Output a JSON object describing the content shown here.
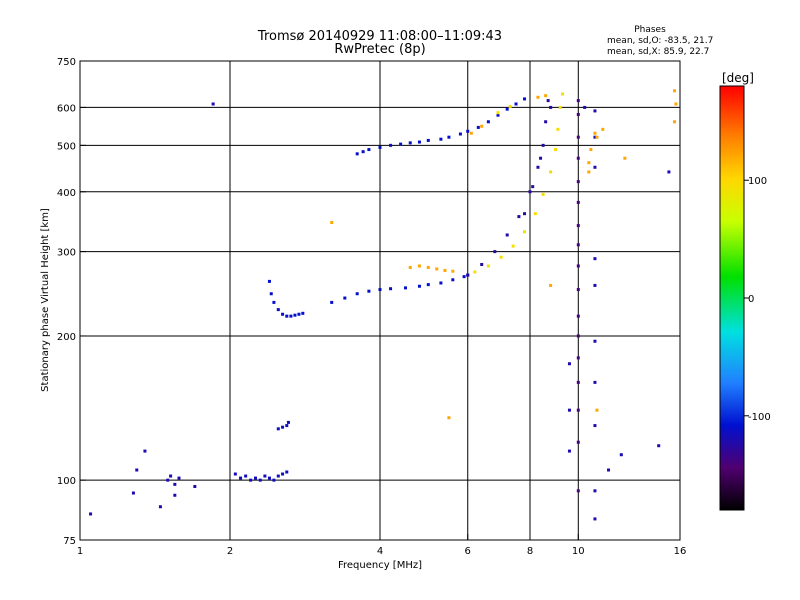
{
  "chart_data": {
    "type": "scatter",
    "title": "Tromsø 20140929 11:08:00–11:09:43",
    "subtitle": "RwPretec (8p)",
    "xlabel": "Frequency [MHz]",
    "ylabel": "Stationary phase Virtual Height [km]",
    "x_scale": "log",
    "y_scale": "log",
    "xlim": [
      1,
      16
    ],
    "ylim": [
      75,
      750
    ],
    "x_ticks": [
      1,
      2,
      4,
      6,
      8,
      10,
      16
    ],
    "x_tick_labels": [
      "1",
      "2",
      "4",
      "6",
      "8",
      "10",
      "16"
    ],
    "y_ticks": [
      75,
      100,
      200,
      300,
      400,
      500,
      600,
      750
    ],
    "y_tick_labels": [
      "75",
      "100",
      "200",
      "300",
      "400",
      "500",
      "600",
      "750"
    ],
    "grid_x": [
      2,
      4,
      6,
      8,
      10
    ],
    "grid_y": [
      100,
      200,
      300,
      400,
      500,
      600
    ],
    "grid": true,
    "phase_info": {
      "heading": "Phases",
      "line_o": "mean, sd,O: -83.5, 21.7",
      "line_x": "mean, sd,X:  85.9, 22.7"
    },
    "colorbar": {
      "label": "[deg]",
      "range": [
        -180,
        180
      ],
      "ticks": [
        100,
        0,
        -100
      ],
      "tick_labels": [
        "100",
        "0",
        "-100"
      ]
    },
    "series": [
      {
        "phase": -120,
        "points": [
          [
            1.05,
            85
          ],
          [
            1.35,
            115
          ],
          [
            1.3,
            105
          ],
          [
            1.5,
            100
          ],
          [
            1.52,
            102
          ],
          [
            1.55,
            98
          ],
          [
            1.58,
            101
          ],
          [
            1.45,
            88
          ],
          [
            1.55,
            93
          ],
          [
            1.28,
            94
          ],
          [
            1.7,
            97
          ],
          [
            1.85,
            610
          ]
        ]
      },
      {
        "phase": -115,
        "points": [
          [
            2.05,
            103
          ],
          [
            2.1,
            101
          ],
          [
            2.15,
            102
          ],
          [
            2.2,
            100
          ],
          [
            2.25,
            101
          ],
          [
            2.3,
            100
          ],
          [
            2.35,
            102
          ],
          [
            2.4,
            101
          ],
          [
            2.45,
            100
          ],
          [
            2.5,
            102
          ],
          [
            2.55,
            103
          ],
          [
            2.6,
            104
          ],
          [
            2.5,
            128
          ],
          [
            2.55,
            129
          ],
          [
            2.6,
            130
          ],
          [
            2.62,
            132
          ]
        ]
      },
      {
        "phase": -110,
        "points": [
          [
            2.4,
            260
          ],
          [
            2.42,
            245
          ],
          [
            2.45,
            235
          ],
          [
            2.5,
            227
          ],
          [
            2.55,
            222
          ],
          [
            2.6,
            220
          ],
          [
            2.65,
            220
          ],
          [
            2.7,
            221
          ],
          [
            2.75,
            222
          ],
          [
            2.8,
            223
          ]
        ]
      },
      {
        "phase": -110,
        "points": [
          [
            3.2,
            235
          ],
          [
            3.4,
            240
          ],
          [
            3.6,
            245
          ],
          [
            3.8,
            248
          ],
          [
            4.0,
            250
          ],
          [
            4.2,
            251
          ],
          [
            4.5,
            252
          ],
          [
            4.8,
            254
          ],
          [
            5.0,
            256
          ],
          [
            5.3,
            258
          ],
          [
            5.6,
            262
          ],
          [
            5.9,
            266
          ],
          [
            6.0,
            268
          ]
        ]
      },
      {
        "phase": -110,
        "points": [
          [
            3.6,
            480
          ],
          [
            3.7,
            485
          ],
          [
            3.8,
            490
          ],
          [
            4.0,
            495
          ],
          [
            4.2,
            500
          ],
          [
            4.4,
            503
          ],
          [
            4.6,
            506
          ],
          [
            4.8,
            508
          ],
          [
            5.0,
            512
          ],
          [
            5.3,
            515
          ],
          [
            5.5,
            520
          ],
          [
            5.8,
            528
          ],
          [
            6.0,
            535
          ],
          [
            6.3,
            545
          ],
          [
            6.6,
            560
          ],
          [
            6.9,
            578
          ],
          [
            7.2,
            595
          ],
          [
            7.5,
            610
          ],
          [
            7.8,
            625
          ]
        ]
      },
      {
        "phase": 120,
        "points": [
          [
            4.6,
            278
          ],
          [
            4.8,
            280
          ],
          [
            5.0,
            278
          ],
          [
            5.2,
            276
          ],
          [
            5.4,
            274
          ],
          [
            5.6,
            273
          ],
          [
            6.1,
            530
          ],
          [
            6.4,
            548
          ],
          [
            8.3,
            630
          ],
          [
            8.6,
            635
          ]
        ]
      },
      {
        "phase": 95,
        "points": [
          [
            6.2,
            272
          ],
          [
            6.6,
            280
          ],
          [
            7.0,
            292
          ],
          [
            7.4,
            308
          ],
          [
            7.8,
            330
          ],
          [
            8.2,
            360
          ],
          [
            8.5,
            395
          ],
          [
            8.8,
            440
          ],
          [
            9.0,
            490
          ],
          [
            9.1,
            540
          ],
          [
            9.2,
            600
          ],
          [
            9.3,
            640
          ],
          [
            6.9,
            585
          ],
          [
            7.3,
            603
          ]
        ]
      },
      {
        "phase": -125,
        "points": [
          [
            6.0,
            268
          ],
          [
            6.4,
            282
          ],
          [
            6.8,
            300
          ],
          [
            7.2,
            325
          ],
          [
            7.6,
            355
          ],
          [
            8.0,
            400
          ],
          [
            8.3,
            450
          ],
          [
            8.5,
            500
          ],
          [
            8.6,
            560
          ],
          [
            8.7,
            620
          ],
          [
            7.8,
            360
          ],
          [
            8.1,
            410
          ],
          [
            8.4,
            470
          ],
          [
            8.8,
            600
          ]
        ]
      },
      {
        "phase": -140,
        "points": [
          [
            10.0,
            95
          ],
          [
            10.0,
            120
          ],
          [
            10.0,
            140
          ],
          [
            10.0,
            160
          ],
          [
            10.0,
            180
          ],
          [
            10.0,
            200
          ],
          [
            10.0,
            220
          ],
          [
            10.0,
            250
          ],
          [
            10.0,
            280
          ],
          [
            10.0,
            310
          ],
          [
            10.0,
            340
          ],
          [
            10.0,
            380
          ],
          [
            10.0,
            420
          ],
          [
            10.0,
            470
          ],
          [
            10.0,
            520
          ],
          [
            10.0,
            580
          ],
          [
            10.0,
            620
          ]
        ]
      },
      {
        "phase": -120,
        "points": [
          [
            10.8,
            83
          ],
          [
            10.8,
            95
          ],
          [
            10.8,
            130
          ],
          [
            10.8,
            160
          ],
          [
            10.8,
            195
          ],
          [
            10.8,
            255
          ],
          [
            10.8,
            290
          ],
          [
            10.8,
            450
          ],
          [
            10.8,
            520
          ],
          [
            10.8,
            590
          ],
          [
            11.5,
            105
          ],
          [
            12.2,
            113
          ],
          [
            14.5,
            118
          ],
          [
            15.2,
            440
          ],
          [
            9.6,
            175
          ],
          [
            9.6,
            140
          ],
          [
            9.6,
            115
          ],
          [
            10.3,
            600
          ]
        ]
      },
      {
        "phase": 120,
        "points": [
          [
            10.5,
            460
          ],
          [
            10.6,
            490
          ],
          [
            10.8,
            530
          ],
          [
            10.9,
            520
          ],
          [
            10.5,
            440
          ],
          [
            11.2,
            540
          ],
          [
            12.4,
            470
          ],
          [
            15.6,
            560
          ],
          [
            15.7,
            610
          ],
          [
            15.6,
            650
          ],
          [
            10.9,
            140
          ],
          [
            5.5,
            135
          ],
          [
            3.2,
            345
          ],
          [
            8.8,
            255
          ]
        ]
      }
    ]
  }
}
